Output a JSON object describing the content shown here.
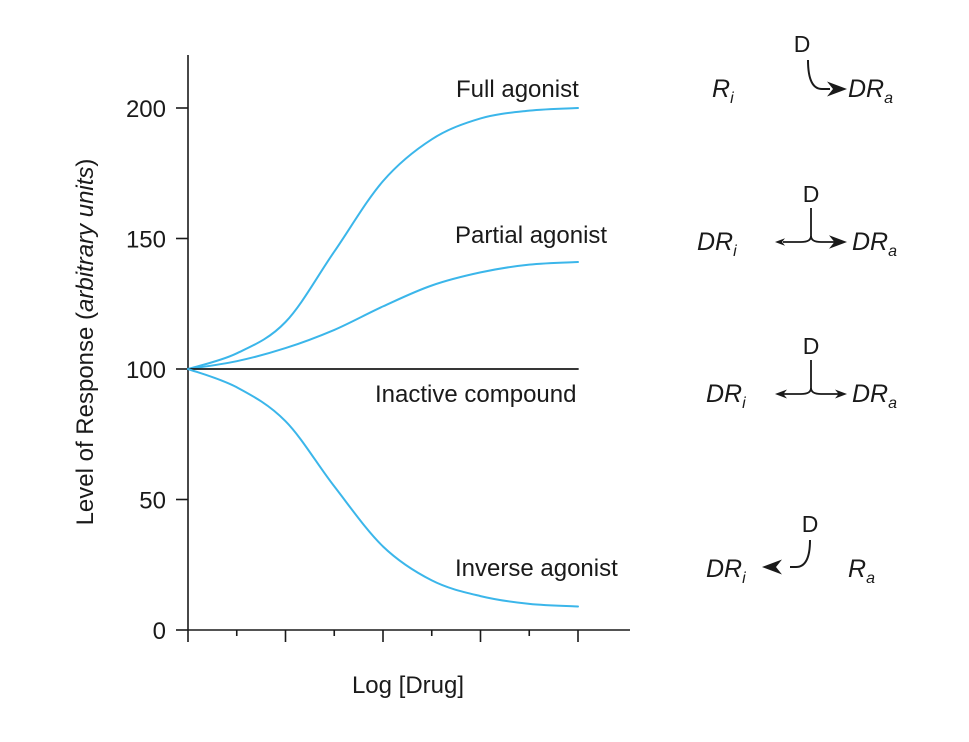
{
  "chart_data": {
    "type": "line",
    "xlabel": "Log [Drug]",
    "ylabel_prefix": "Level of Response (",
    "ylabel_italic": "arbitrary units",
    "ylabel_suffix": ")",
    "ylim": [
      0,
      220
    ],
    "yticks": [
      0,
      50,
      100,
      150,
      200
    ],
    "xlim": [
      0,
      9
    ],
    "x_tick_count": 9,
    "show_x_tick_labels": false,
    "grid": false,
    "legend": "none",
    "series_color": "#3bb6ea",
    "baseline_color": "#1a1a1a",
    "x": [
      0,
      1,
      2,
      3,
      4,
      5,
      6,
      7,
      8
    ],
    "series": [
      {
        "name": "Full agonist",
        "values": [
          100,
          106,
          118,
          145,
          172,
          188,
          196,
          199,
          200
        ]
      },
      {
        "name": "Partial agonist",
        "values": [
          100,
          103,
          108,
          115,
          124,
          132,
          137,
          140,
          141
        ]
      },
      {
        "name": "Inactive compound",
        "values": [
          100,
          100,
          100,
          100,
          100,
          100,
          100,
          100,
          100
        ]
      },
      {
        "name": "Inverse agonist",
        "values": [
          100,
          93,
          80,
          55,
          32,
          19,
          13,
          10,
          9
        ]
      }
    ],
    "schemes": [
      {
        "drug": "D",
        "left": "R",
        "left_sub": "i",
        "right": "DR",
        "right_sub": "a",
        "direction": "right"
      },
      {
        "drug": "D",
        "left": "DR",
        "left_sub": "i",
        "right": "DR",
        "right_sub": "a",
        "direction": "both-right-strong"
      },
      {
        "drug": "D",
        "left": "DR",
        "left_sub": "i",
        "right": "DR",
        "right_sub": "a",
        "direction": "both-equal"
      },
      {
        "drug": "D",
        "left": "DR",
        "left_sub": "i",
        "right": "R",
        "right_sub": "a",
        "direction": "left"
      }
    ]
  }
}
